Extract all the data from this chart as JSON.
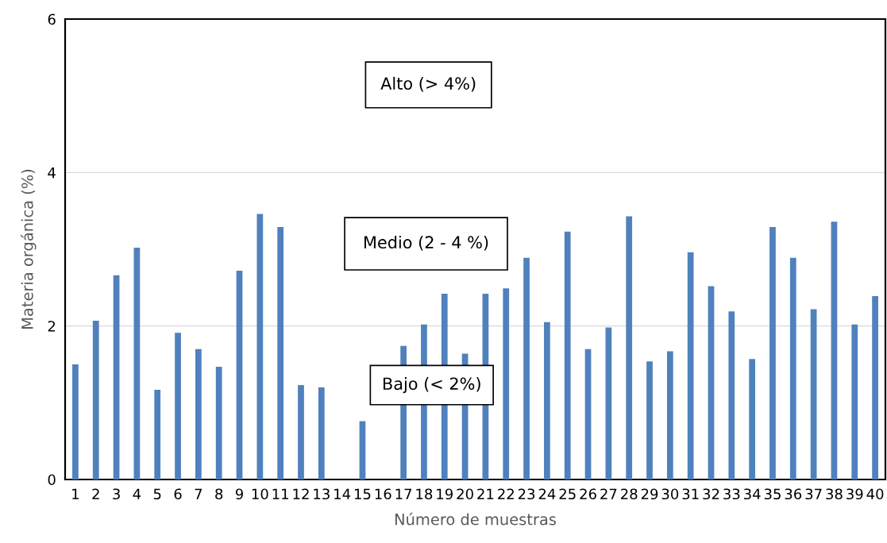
{
  "chart_data": {
    "type": "bar",
    "xlabel": "Número de muestras",
    "ylabel": "Materia orgánica (%)",
    "categories": [
      "1",
      "2",
      "3",
      "4",
      "5",
      "6",
      "7",
      "8",
      "9",
      "10",
      "11",
      "12",
      "13",
      "14",
      "15",
      "16",
      "17",
      "18",
      "19",
      "20",
      "21",
      "22",
      "23",
      "24",
      "25",
      "26",
      "27",
      "28",
      "29",
      "30",
      "31",
      "32",
      "33",
      "34",
      "35",
      "36",
      "37",
      "38",
      "39",
      "40"
    ],
    "values": [
      1.5,
      2.07,
      2.66,
      3.02,
      1.17,
      1.91,
      1.7,
      1.47,
      2.72,
      3.46,
      3.29,
      1.23,
      1.2,
      null,
      0.76,
      null,
      1.74,
      2.02,
      2.42,
      1.64,
      2.42,
      2.49,
      2.89,
      2.05,
      3.23,
      1.7,
      1.98,
      3.43,
      1.54,
      1.67,
      2.96,
      2.52,
      2.19,
      1.57,
      3.29,
      2.89,
      2.22,
      3.36,
      2.02,
      2.39
    ],
    "color": "#4f81bd",
    "ylim": [
      0,
      6
    ],
    "yticks": [
      0,
      2,
      4,
      6
    ],
    "grid": "y",
    "legend": false,
    "annotations": [
      "Alto (> 4%)",
      "Medio (2 - 4 %)",
      "Bajo (< 2%)"
    ]
  }
}
